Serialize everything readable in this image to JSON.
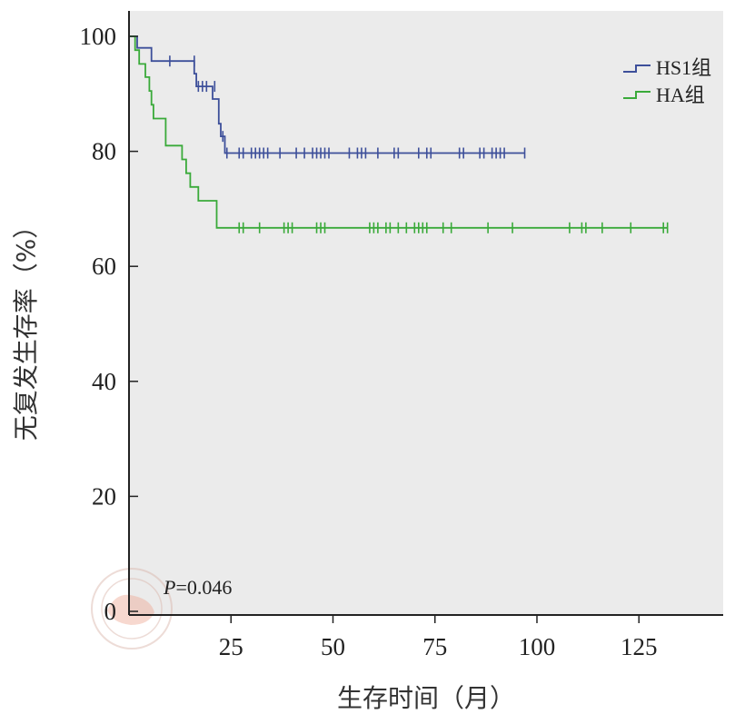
{
  "chart_data": {
    "type": "line",
    "subtype": "kaplan-meier",
    "title": "",
    "xlabel": "生存时间（月）",
    "ylabel": "无复发生存率（%）",
    "xlim": [
      0,
      145
    ],
    "ylim": [
      0,
      100
    ],
    "x_ticks": [
      25,
      50,
      75,
      100,
      125
    ],
    "x_tick_labels": [
      "25",
      "50",
      "75",
      "100",
      "125"
    ],
    "y_ticks": [
      0,
      20,
      40,
      60,
      80,
      100
    ],
    "y_tick_labels": [
      "0",
      "20",
      "40",
      "60",
      "80",
      "100"
    ],
    "grid": false,
    "legend_position": "top-right",
    "annotation": {
      "italic": "P",
      "rest": "=0.046"
    },
    "series": [
      {
        "name": "HS1组",
        "color": "#3d4f9a",
        "steps": [
          [
            0,
            100
          ],
          [
            2,
            100
          ],
          [
            2,
            98
          ],
          [
            5.5,
            98
          ],
          [
            5.5,
            95.7
          ],
          [
            16,
            95.7
          ],
          [
            16,
            93.5
          ],
          [
            16.5,
            93.5
          ],
          [
            16.5,
            91.3
          ],
          [
            20.5,
            91.3
          ],
          [
            20.5,
            89.1
          ],
          [
            22,
            89.1
          ],
          [
            22,
            84.8
          ],
          [
            22.5,
            84.8
          ],
          [
            22.5,
            82.6
          ],
          [
            23.5,
            82.6
          ],
          [
            23.5,
            79.7
          ],
          [
            97,
            79.7
          ]
        ],
        "censor_x": [
          10,
          16,
          17,
          18,
          19,
          21,
          23,
          24,
          27,
          28,
          30,
          31,
          32,
          33,
          34,
          37,
          41,
          43,
          45,
          46,
          47,
          48,
          49,
          54,
          56,
          57,
          58,
          61,
          65,
          66,
          71,
          73,
          74,
          81,
          82,
          86,
          87,
          89,
          90,
          91,
          92,
          97
        ],
        "censor_y": [
          95.7,
          95.7,
          91.3,
          91.3,
          91.3,
          91.3,
          82.6,
          79.7,
          79.7,
          79.7,
          79.7,
          79.7,
          79.7,
          79.7,
          79.7,
          79.7,
          79.7,
          79.7,
          79.7,
          79.7,
          79.7,
          79.7,
          79.7,
          79.7,
          79.7,
          79.7,
          79.7,
          79.7,
          79.7,
          79.7,
          79.7,
          79.7,
          79.7,
          79.7,
          79.7,
          79.7,
          79.7,
          79.7,
          79.7,
          79.7,
          79.7,
          79.7
        ]
      },
      {
        "name": "HA组",
        "color": "#3aaa3a",
        "steps": [
          [
            0,
            100
          ],
          [
            1.5,
            100
          ],
          [
            1.5,
            97.6
          ],
          [
            2.5,
            97.6
          ],
          [
            2.5,
            95.2
          ],
          [
            4,
            95.2
          ],
          [
            4,
            92.9
          ],
          [
            5,
            92.9
          ],
          [
            5,
            90.5
          ],
          [
            5.5,
            90.5
          ],
          [
            5.5,
            88.1
          ],
          [
            6,
            88.1
          ],
          [
            6,
            85.7
          ],
          [
            9,
            85.7
          ],
          [
            9,
            81
          ],
          [
            13,
            81
          ],
          [
            13,
            78.6
          ],
          [
            14,
            78.6
          ],
          [
            14,
            76.2
          ],
          [
            15,
            76.2
          ],
          [
            15,
            73.8
          ],
          [
            17,
            73.8
          ],
          [
            17,
            71.4
          ],
          [
            21.5,
            71.4
          ],
          [
            21.5,
            66.7
          ],
          [
            132,
            66.7
          ]
        ],
        "censor_x": [
          27,
          28,
          32,
          38,
          39,
          40,
          46,
          47,
          48,
          59,
          60,
          61,
          63,
          64,
          66,
          68,
          70,
          71,
          72,
          73,
          77,
          79,
          88,
          94,
          108,
          111,
          112,
          116,
          123,
          131,
          132
        ],
        "censor_y": [
          66.7,
          66.7,
          66.7,
          66.7,
          66.7,
          66.7,
          66.7,
          66.7,
          66.7,
          66.7,
          66.7,
          66.7,
          66.7,
          66.7,
          66.7,
          66.7,
          66.7,
          66.7,
          66.7,
          66.7,
          66.7,
          66.7,
          66.7,
          66.7,
          66.7,
          66.7,
          66.7,
          66.7,
          66.7,
          66.7,
          66.7
        ]
      }
    ]
  },
  "colors": {
    "plot_background": "#ebebeb",
    "axis": "#222222"
  }
}
